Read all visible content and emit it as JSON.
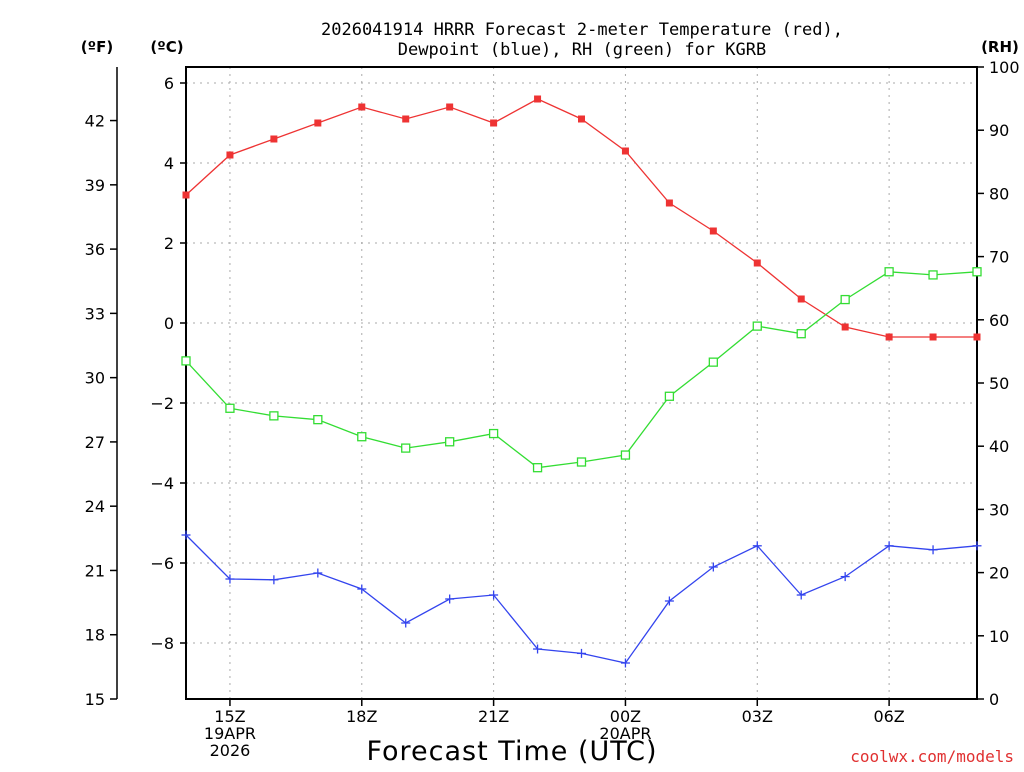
{
  "chart_data": {
    "type": "line",
    "title_line1": "2026041914 HRRR Forecast 2-meter Temperature (red),",
    "title_line2": "Dewpoint (blue), RH (green) for KGRB",
    "xlabel": "Forecast Time (UTC)",
    "credit": "coolwx.com/models",
    "units": {
      "fahrenheit": "(ºF)",
      "celsius": "(ºC)",
      "rh": "(RH)"
    },
    "x_hours": [
      0,
      1,
      2,
      3,
      4,
      5,
      6,
      7,
      8,
      9,
      10,
      11,
      12,
      13,
      14,
      15,
      16,
      17,
      18
    ],
    "x_ticks": [
      {
        "hour": 1,
        "lines": [
          "15Z",
          "19APR",
          "2026"
        ]
      },
      {
        "hour": 4,
        "lines": [
          "18Z"
        ]
      },
      {
        "hour": 7,
        "lines": [
          "21Z"
        ]
      },
      {
        "hour": 10,
        "lines": [
          "00Z",
          "20APR"
        ]
      },
      {
        "hour": 13,
        "lines": [
          "03Z"
        ]
      },
      {
        "hour": 16,
        "lines": [
          "06Z"
        ]
      }
    ],
    "c_axis": {
      "range": [
        -9.4,
        6.4
      ],
      "ticks": [
        6,
        4,
        2,
        0,
        -2,
        -4,
        -6,
        -8
      ],
      "tick_labels": [
        "6",
        "4",
        "2",
        "0",
        "−2",
        "−4",
        "−6",
        "−8"
      ]
    },
    "f_axis": {
      "range": [
        15,
        44.5
      ],
      "ticks": [
        15,
        18,
        21,
        24,
        27,
        30,
        33,
        36,
        39,
        42
      ],
      "tick_labels": [
        "15",
        "18",
        "21",
        "24",
        "27",
        "30",
        "33",
        "36",
        "39",
        "42"
      ]
    },
    "rh_axis": {
      "range": [
        0,
        100
      ],
      "ticks": [
        0,
        10,
        20,
        30,
        40,
        50,
        60,
        70,
        80,
        90,
        100
      ],
      "tick_labels": [
        "0",
        "10",
        "20",
        "30",
        "40",
        "50",
        "60",
        "70",
        "80",
        "90",
        "100"
      ]
    },
    "series": [
      {
        "name": "Temperature",
        "unit": "C",
        "color": "#ee3333",
        "marker": "filled-square",
        "values": [
          3.2,
          4.2,
          4.6,
          5.0,
          5.4,
          5.1,
          5.4,
          5.0,
          5.6,
          5.1,
          4.3,
          3.0,
          2.3,
          1.5,
          0.6,
          -0.1,
          -0.35,
          -0.35,
          -0.35
        ]
      },
      {
        "name": "Dewpoint",
        "unit": "C",
        "color": "#3344ee",
        "marker": "plus",
        "values": [
          -5.3,
          -6.4,
          -6.42,
          -6.25,
          -6.65,
          -7.5,
          -6.9,
          -6.8,
          -8.15,
          -8.26,
          -8.5,
          -6.95,
          -6.1,
          -5.57,
          -6.8,
          -6.34,
          -5.57,
          -5.67,
          -5.57
        ]
      },
      {
        "name": "RH",
        "unit": "%",
        "color": "#33dd33",
        "marker": "open-square",
        "values": [
          53.5,
          46.0,
          44.8,
          44.2,
          41.5,
          39.7,
          40.7,
          42.0,
          36.6,
          37.5,
          38.6,
          47.9,
          53.3,
          59.0,
          57.8,
          63.2,
          67.6,
          67.1,
          67.6
        ]
      }
    ],
    "grid": true
  }
}
